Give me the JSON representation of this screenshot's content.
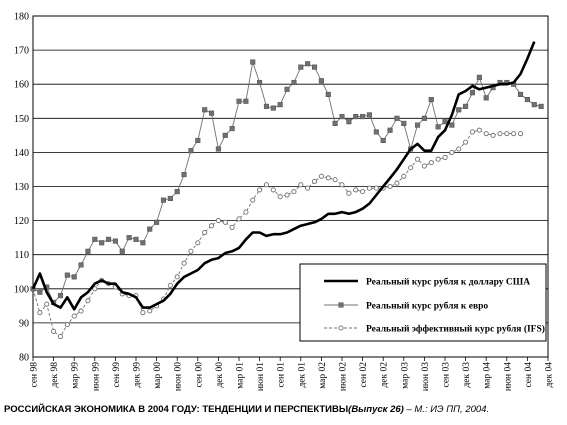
{
  "chart_data": {
    "type": "line",
    "title": "",
    "xlabel": "",
    "ylabel": "",
    "ylim": [
      80,
      180
    ],
    "yticks": [
      80,
      90,
      100,
      110,
      120,
      130,
      140,
      150,
      160,
      170,
      180
    ],
    "grid": "horizontal",
    "legend_position": "lower-right",
    "x_tick_labels": [
      "сен 98",
      "дек 98",
      "мар 99",
      "июн 99",
      "сен 99",
      "дек 99",
      "мар 00",
      "июн 00",
      "сен 00",
      "дек 00",
      "мар 01",
      "июн 01",
      "сен 01",
      "дек 01",
      "мар 02",
      "июн 02",
      "сен 02",
      "дек 02",
      "мар 03",
      "июн 03",
      "сен 03",
      "дек 03",
      "мар 04",
      "июн 04",
      "сен 04",
      "дек 04"
    ],
    "series": [
      {
        "name": "Реальный курс рубля к доллару США",
        "color": "#000000",
        "style": "thick-solid",
        "values": [
          100,
          104.5,
          99,
          95.5,
          94.5,
          97.5,
          94,
          97.5,
          99,
          101.5,
          102.5,
          101.5,
          101.5,
          99,
          98.5,
          97.5,
          94.5,
          94.5,
          95.5,
          96.5,
          98.5,
          101.5,
          103.5,
          104.5,
          105.5,
          107.5,
          108.5,
          109,
          110.5,
          111,
          112,
          114.5,
          116.5,
          116.5,
          115.5,
          116,
          116,
          116.5,
          117.5,
          118.5,
          119,
          119.5,
          120.5,
          122,
          122,
          122.5,
          122,
          122.5,
          123.5,
          125,
          127.5,
          130,
          132.5,
          135,
          138,
          141,
          142.5,
          140.5,
          140.5,
          144.5,
          146.5,
          151,
          157,
          158,
          159.5,
          158.5,
          159,
          159.5,
          160,
          160,
          160.5,
          163,
          167.5,
          172.5
        ]
      },
      {
        "name": "Реальный курс рубля к евро",
        "color": "#707070",
        "style": "thin-solid-square",
        "values": [
          100,
          99,
          100.5,
          96,
          98,
          104,
          103.5,
          107,
          111,
          114.5,
          113.5,
          114.5,
          114,
          111,
          115,
          114.5,
          113.5,
          117.5,
          119.5,
          126,
          126.5,
          128.5,
          133.5,
          140.5,
          143.5,
          152.5,
          151.5,
          141,
          145,
          147,
          155,
          155,
          166.5,
          160.5,
          153.5,
          153,
          154,
          158.5,
          160.5,
          165,
          166,
          165,
          161,
          157,
          148.5,
          150.5,
          149,
          150.5,
          150.5,
          151,
          146,
          143.5,
          146.5,
          150,
          148.5,
          141,
          148,
          150,
          155.5,
          147.5,
          149,
          148,
          152.5,
          153.5,
          157.5,
          162,
          156,
          159,
          160.5,
          160.5,
          160,
          157,
          155.5,
          154,
          153.5
        ]
      },
      {
        "name": "Реальный эффективный курс рубля (IFS)",
        "color": "#707070",
        "style": "dashed-circle",
        "values": [
          100,
          93,
          95.5,
          87.5,
          86,
          89.5,
          92,
          93.5,
          96.5,
          100,
          102.5,
          101.5,
          100.5,
          98.5,
          98,
          98,
          93,
          93.5,
          95,
          97,
          101,
          103.5,
          107.5,
          111,
          113.5,
          116.5,
          118.5,
          120,
          119.5,
          118,
          120.5,
          122.5,
          126,
          129,
          130.5,
          129,
          127,
          127.5,
          128.5,
          130.5,
          129.5,
          131.5,
          133,
          132.5,
          132,
          130.5,
          128,
          129,
          128.5,
          129.5,
          129.5,
          129.5,
          130,
          131,
          133,
          135.5,
          138,
          136,
          137,
          138,
          138.5,
          140,
          141,
          143,
          146,
          146.5,
          145.5,
          145,
          145.5,
          145.5,
          145.5,
          145.5
        ]
      }
    ]
  },
  "caption": {
    "part1": "РОССИЙСКАЯ ЭКОНОМИКА В 2004 ГОДУ: ТЕНДЕНЦИИ И ПЕРСПЕКТИВЫ",
    "part2": "(Выпуск 26)",
    "part3": " – М.: ИЭ ПП, 2004."
  }
}
